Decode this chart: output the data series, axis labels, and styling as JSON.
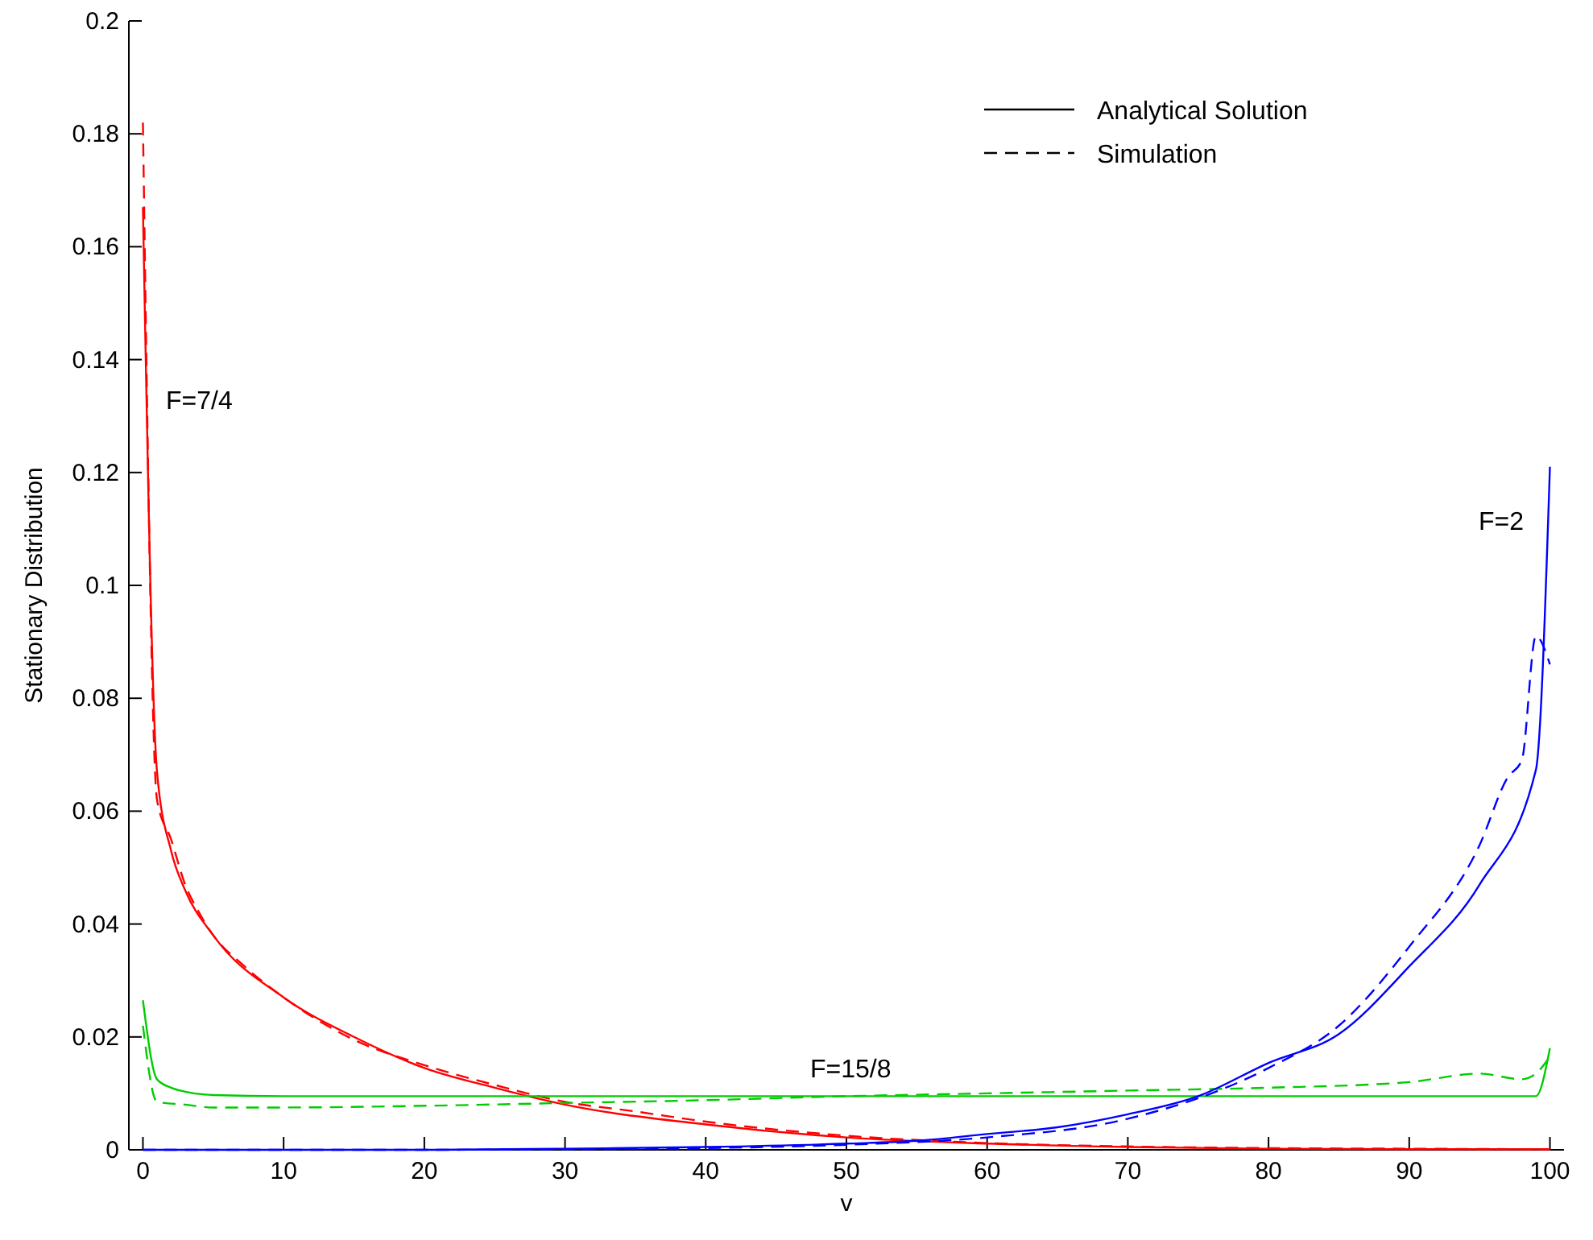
{
  "chart_data": {
    "type": "line",
    "xlabel": "v",
    "ylabel": "Stationary Distribution",
    "xlim": [
      -1,
      101
    ],
    "ylim": [
      0,
      0.2
    ],
    "xticks": [
      0,
      10,
      20,
      30,
      40,
      50,
      60,
      70,
      80,
      90,
      100
    ],
    "yticks": [
      0,
      0.02,
      0.04,
      0.06,
      0.08,
      0.1,
      0.12,
      0.14,
      0.16,
      0.18,
      0.2
    ],
    "grid": false,
    "legend": "top right",
    "annotations": [
      "F=7/4",
      "F=2",
      "F=15/8"
    ],
    "series": [
      {
        "name": "Analytical Solution",
        "color": "#000000",
        "line_style": "solid"
      },
      {
        "name": "Simulation",
        "color": "#000000",
        "line_style": "dashed"
      },
      {
        "color": "#ff0000",
        "line_style": "solid",
        "x": [
          0,
          1,
          2,
          3,
          5,
          10,
          15,
          20,
          25,
          30,
          40,
          50,
          60,
          70,
          80,
          90,
          100
        ],
        "values": [
          0.167,
          0.067,
          0.053,
          0.046,
          0.038,
          0.027,
          0.02,
          0.0145,
          0.011,
          0.008,
          0.0045,
          0.0022,
          0.0011,
          0.0005,
          0.0002,
          0.0001,
          0.0001
        ]
      },
      {
        "color": "#ff0000",
        "line_style": "dashed",
        "x": [
          0,
          1,
          2,
          3,
          4,
          5,
          7,
          10,
          15,
          20,
          25,
          30,
          35,
          40,
          50,
          60,
          70,
          80,
          90,
          100
        ],
        "values": [
          0.182,
          0.062,
          0.055,
          0.047,
          0.042,
          0.038,
          0.033,
          0.027,
          0.0195,
          0.015,
          0.0115,
          0.0085,
          0.0068,
          0.005,
          0.0025,
          0.0012,
          0.0006,
          0.0003,
          0.0002,
          0.0001
        ]
      },
      {
        "color": "#00cc00",
        "line_style": "solid",
        "x": [
          0,
          1,
          2,
          3,
          5,
          10,
          50,
          99,
          100
        ],
        "values": [
          0.0265,
          0.0125,
          0.011,
          0.0103,
          0.0097,
          0.0095,
          0.0095,
          0.0095,
          0.018
        ]
      },
      {
        "color": "#00cc00",
        "line_style": "dashed",
        "x": [
          0,
          1,
          3,
          5,
          10,
          20,
          30,
          40,
          50,
          60,
          70,
          80,
          90,
          95,
          98,
          99,
          100
        ],
        "values": [
          0.022,
          0.0085,
          0.008,
          0.0075,
          0.0075,
          0.0078,
          0.0083,
          0.0088,
          0.0095,
          0.01,
          0.0105,
          0.011,
          0.012,
          0.0135,
          0.0125,
          0.0135,
          0.0165
        ]
      },
      {
        "color": "#0000ff",
        "line_style": "solid",
        "x": [
          0,
          20,
          30,
          40,
          50,
          55,
          60,
          65,
          70,
          75,
          80,
          85,
          90,
          95,
          99,
          100
        ],
        "values": [
          0,
          0,
          0.0002,
          0.0005,
          0.0011,
          0.0016,
          0.0028,
          0.004,
          0.0063,
          0.0095,
          0.0154,
          0.0205,
          0.0325,
          0.047,
          0.0673,
          0.121
        ]
      },
      {
        "color": "#0000ff",
        "line_style": "dashed",
        "x": [
          0,
          20,
          30,
          40,
          50,
          60,
          70,
          80,
          85,
          90,
          95,
          97,
          98,
          99,
          100
        ],
        "values": [
          0,
          0,
          0.0001,
          0.0003,
          0.0009,
          0.0022,
          0.0055,
          0.0145,
          0.022,
          0.036,
          0.054,
          0.066,
          0.069,
          0.091,
          0.086
        ]
      }
    ]
  }
}
